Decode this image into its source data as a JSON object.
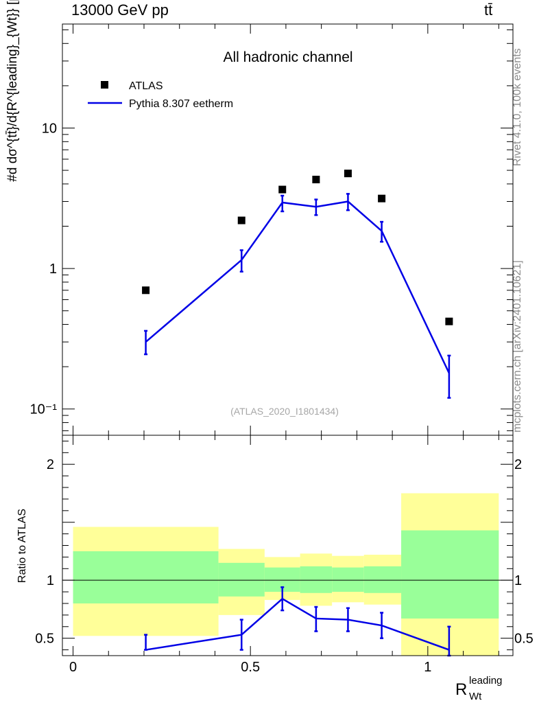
{
  "header": {
    "energy_label": "13000 GeV pp",
    "process_label": "tt̄"
  },
  "side_labels": {
    "rivet": "Rivet 4.1.0,  100k events",
    "mcplots": "mcplots.cern.ch [arXiv:2401.10621]"
  },
  "colors": {
    "mc": "#0000e6",
    "band_inner": "#99ff99",
    "band_outer": "#ffff99",
    "data": "#000000",
    "watermark": "#a6a6a6"
  },
  "chart_data": {
    "type": "scatter",
    "title": "All hadronic channel",
    "watermark": "(ATLAS_2020_I1801434)",
    "xlabel": "R",
    "xlabel_sup": "leading",
    "xlabel_sub": "Wt",
    "ylabel": "#d dσ^{tt̄}/d{R^{leading}_{Wt}} [pb]",
    "ratio_ylabel": "Ratio to ATLAS",
    "xlim": [
      -0.03,
      1.24
    ],
    "ylim_log": [
      0.065,
      55
    ],
    "ratio_ylim": [
      0.35,
      2.25
    ],
    "x_ticks": [
      "0",
      "0.5",
      "1"
    ],
    "x_tick_values": [
      0,
      0.5,
      1
    ],
    "y_ticks": [
      "10⁻¹",
      "1",
      "10"
    ],
    "y_tick_values": [
      0.1,
      1,
      10
    ],
    "ratio_ticks": [
      "0.5",
      "1",
      "2"
    ],
    "ratio_tick_values": [
      0.5,
      1,
      2
    ],
    "legend": [
      {
        "label": "ATLAS",
        "kind": "marker"
      },
      {
        "label": "Pythia 8.307 eetherm",
        "kind": "line"
      }
    ],
    "bins": [
      {
        "lo": 0.0,
        "hi": 0.41,
        "x": 0.205,
        "data": 0.7,
        "mc": 0.3,
        "mc_lo": 0.245,
        "mc_hi": 0.36,
        "r_in": [
          0.8,
          1.25
        ],
        "r_out": [
          0.52,
          1.46
        ],
        "ratio": 0.4,
        "ratio_lo": 0.4,
        "ratio_hi": 0.53
      },
      {
        "lo": 0.41,
        "hi": 0.54,
        "x": 0.475,
        "data": 2.2,
        "mc": 1.15,
        "mc_lo": 0.95,
        "mc_hi": 1.35,
        "r_in": [
          0.86,
          1.15
        ],
        "r_out": [
          0.7,
          1.27
        ],
        "ratio": 0.53,
        "ratio_lo": 0.4,
        "ratio_hi": 0.66
      },
      {
        "lo": 0.54,
        "hi": 0.64,
        "x": 0.59,
        "data": 3.65,
        "mc": 2.95,
        "mc_lo": 2.55,
        "mc_hi": 3.3,
        "r_in": [
          0.9,
          1.11
        ],
        "r_out": [
          0.83,
          1.2
        ],
        "ratio": 0.84,
        "ratio_lo": 0.74,
        "ratio_hi": 0.94
      },
      {
        "lo": 0.64,
        "hi": 0.73,
        "x": 0.685,
        "data": 4.3,
        "mc": 2.75,
        "mc_lo": 2.4,
        "mc_hi": 3.1,
        "r_in": [
          0.89,
          1.12
        ],
        "r_out": [
          0.78,
          1.23
        ],
        "ratio": 0.67,
        "ratio_lo": 0.56,
        "ratio_hi": 0.77
      },
      {
        "lo": 0.73,
        "hi": 0.82,
        "x": 0.775,
        "data": 4.75,
        "mc": 3.0,
        "mc_lo": 2.6,
        "mc_hi": 3.4,
        "r_in": [
          0.9,
          1.11
        ],
        "r_out": [
          0.81,
          1.21
        ],
        "ratio": 0.66,
        "ratio_lo": 0.56,
        "ratio_hi": 0.76
      },
      {
        "lo": 0.82,
        "hi": 0.925,
        "x": 0.87,
        "data": 3.15,
        "mc": 1.85,
        "mc_lo": 1.55,
        "mc_hi": 2.15,
        "r_in": [
          0.89,
          1.12
        ],
        "r_out": [
          0.79,
          1.22
        ],
        "ratio": 0.61,
        "ratio_lo": 0.5,
        "ratio_hi": 0.72
      },
      {
        "lo": 0.925,
        "hi": 1.2,
        "x": 1.06,
        "data": 0.42,
        "mc": 0.18,
        "mc_lo": 0.12,
        "mc_hi": 0.24,
        "r_in": [
          0.67,
          1.43
        ],
        "r_out": [
          0.35,
          1.75
        ],
        "ratio": 0.4,
        "ratio_lo": 0.35,
        "ratio_hi": 0.6
      }
    ]
  }
}
